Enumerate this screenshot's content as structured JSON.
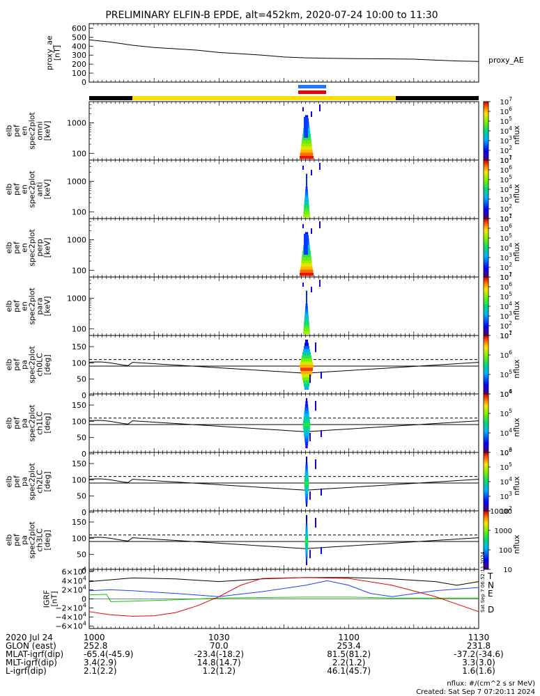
{
  "title": "PRELIMINARY ELFIN-B EPDE, alt=452km, 2020-07-24 10:00 to 11:30",
  "colors": {
    "blue": "#1f77ff",
    "red": "#e60000",
    "green": "#00cc00",
    "yellow": "#ffdd00",
    "black": "#000000"
  },
  "chart_data": [
    {
      "type": "line",
      "panel": "proxy_ae",
      "ylabel": [
        "proxy_ae",
        "[nT]"
      ],
      "label_right": "proxy_AE",
      "y_ticks": [
        "600",
        "500",
        "400",
        "300",
        "200",
        "100",
        "0"
      ],
      "ylim": [
        0,
        650
      ],
      "x": [
        0,
        5,
        10,
        15,
        20,
        25,
        30,
        35,
        40,
        45,
        50,
        55,
        60,
        65,
        70,
        75,
        80,
        85,
        90
      ],
      "y": [
        470,
        445,
        410,
        385,
        370,
        355,
        330,
        315,
        300,
        280,
        270,
        265,
        262,
        260,
        258,
        255,
        245,
        235,
        230
      ]
    },
    {
      "type": "heatmap",
      "panel": "omni",
      "ylabel": [
        "elb",
        "pef",
        "en",
        "spec2plot",
        "omni",
        "[keV]"
      ],
      "y_ticks": [
        "1000",
        "100"
      ],
      "colorbar_ticks": [
        "10^7",
        "10^6",
        "10^5",
        "10^4",
        "10^3",
        "10^2",
        "10^1"
      ],
      "colorbar_label": "nflux"
    },
    {
      "type": "heatmap",
      "panel": "anti",
      "ylabel": [
        "elb",
        "pef",
        "en",
        "spec2plot",
        "anti",
        "[keV]"
      ],
      "y_ticks": [
        "1000",
        "100"
      ],
      "colorbar_ticks": [
        "10^7",
        "10^6",
        "10^5",
        "10^4",
        "10^3",
        "10^2",
        "10^1"
      ],
      "colorbar_label": "nflux"
    },
    {
      "type": "heatmap",
      "panel": "perp",
      "ylabel": [
        "elb",
        "pef",
        "en",
        "spec2plot",
        "perp",
        "[keV]"
      ],
      "y_ticks": [
        "1000",
        "100"
      ],
      "colorbar_ticks": [
        "10^7",
        "10^6",
        "10^5",
        "10^4",
        "10^3",
        "10^2",
        "10^1"
      ],
      "colorbar_label": "nflux"
    },
    {
      "type": "heatmap",
      "panel": "para",
      "ylabel": [
        "elb",
        "pef",
        "en",
        "spec2plot",
        "para",
        "[keV]"
      ],
      "y_ticks": [
        "1000",
        "100"
      ],
      "colorbar_ticks": [
        "10^7",
        "10^6",
        "10^5",
        "10^4",
        "10^3",
        "10^2",
        "10^1"
      ],
      "colorbar_label": "nflux"
    },
    {
      "type": "heatmap",
      "panel": "ch0LC",
      "ylabel": [
        "elb",
        "pef",
        "pa",
        "spec2plot",
        "ch0LC",
        "[deg]"
      ],
      "y_ticks": [
        "150",
        "100",
        "50",
        "0"
      ],
      "colorbar_ticks": [
        "10^7",
        "10^6",
        "10^5",
        "10^4"
      ],
      "colorbar_label": "nflux"
    },
    {
      "type": "heatmap",
      "panel": "ch1LC",
      "ylabel": [
        "elb",
        "pef",
        "pa",
        "spec2plot",
        "ch1LC",
        "[deg]"
      ],
      "y_ticks": [
        "150",
        "100",
        "50",
        "0"
      ],
      "colorbar_ticks": [
        "10^6",
        "10^5",
        "10^4",
        "10^3"
      ],
      "colorbar_label": "nflux"
    },
    {
      "type": "heatmap",
      "panel": "ch2LC",
      "ylabel": [
        "elb",
        "pef",
        "pa",
        "spec2plot",
        "ch2LC",
        "[deg]"
      ],
      "y_ticks": [
        "150",
        "100",
        "50",
        "0"
      ],
      "colorbar_ticks": [
        "10^6",
        "10^5",
        "10^4",
        "10^3",
        "10^2"
      ],
      "colorbar_label": "nflux"
    },
    {
      "type": "heatmap",
      "panel": "ch3LC",
      "ylabel": [
        "elb",
        "pef",
        "pa",
        "spec2plot",
        "ch3LC",
        "[deg]"
      ],
      "y_ticks": [
        "150",
        "100",
        "50",
        "0"
      ],
      "colorbar_ticks": [
        "10000",
        "1000",
        "100",
        "10"
      ],
      "colorbar_label": "nflux"
    },
    {
      "type": "line",
      "panel": "IGRF",
      "ylabel": [
        "IGRF",
        "[nT]"
      ],
      "y_ticks": [
        "6×10^4",
        "4×10^4",
        "2×10^4",
        "0",
        "−2×10^4",
        "−4×10^4",
        "−6×10^4"
      ],
      "ylim": [
        -65000,
        65000
      ],
      "legend": [
        "T",
        "N",
        "E",
        "D"
      ],
      "series": [
        {
          "name": "T",
          "color": "#000000",
          "x": [
            0,
            10,
            20,
            30,
            40,
            50,
            60,
            70,
            80,
            85,
            90
          ],
          "y": [
            38000,
            46000,
            44000,
            38000,
            44000,
            47000,
            47000,
            44000,
            38000,
            30000,
            38000
          ]
        },
        {
          "name": "N",
          "color": "#1f3cff",
          "x": [
            0,
            5,
            10,
            15,
            20,
            30,
            40,
            50,
            55,
            60,
            65,
            70,
            80,
            90
          ],
          "y": [
            18000,
            20000,
            18000,
            15000,
            12000,
            5000,
            16000,
            30000,
            40000,
            30000,
            12000,
            5000,
            18000,
            25000
          ]
        },
        {
          "name": "E",
          "color": "#00cc00",
          "x": [
            0,
            4,
            5,
            10,
            20,
            30,
            40,
            50,
            60,
            70,
            80,
            90
          ],
          "y": [
            9000,
            10000,
            -6000,
            -5000,
            -2000,
            2000,
            3000,
            4000,
            4000,
            2000,
            2000,
            2000
          ]
        },
        {
          "name": "D",
          "color": "#e60000",
          "x": [
            0,
            5,
            10,
            15,
            20,
            25,
            30,
            35,
            40,
            50,
            60,
            70,
            80,
            90
          ],
          "y": [
            -28000,
            -35000,
            -38000,
            -37000,
            -30000,
            -15000,
            5000,
            30000,
            45000,
            47000,
            45000,
            30000,
            5000,
            -28000
          ]
        }
      ]
    }
  ],
  "time_labels": [
    "1000",
    "1030",
    "1100",
    "1130"
  ],
  "footer_rows": [
    {
      "label": "2020 Jul 24",
      "values": [
        "1000",
        "1030",
        "1100",
        "1130"
      ]
    },
    {
      "label": "GLON (east)",
      "values": [
        "252.8",
        "70.0",
        "253.4",
        "231.8"
      ]
    },
    {
      "label": "MLAT-igrf(dip)",
      "values": [
        "-65.4(-45.9)",
        "-23.4(-18.2)",
        "81.5(81.2)",
        "-37.2(-34.6)"
      ]
    },
    {
      "label": "MLT-igrf(dip)",
      "values": [
        "3.4(2.9)",
        "14.8(14.7)",
        "2.2(1.2)",
        "3.3(3.0)"
      ]
    },
    {
      "label": "L-igrf(dip)",
      "values": [
        "2.1(2.2)",
        "1.2(1.2)",
        "46.1(45.7)",
        "1.6(1.6)"
      ]
    }
  ],
  "footnote_units": "nflux: #/(cm^2 s sr MeV)",
  "footnote_created": "Created: Sat Sep  7 07:20:11 2024",
  "side_stamp": "Sat Sep  7 06:52:11 2024"
}
